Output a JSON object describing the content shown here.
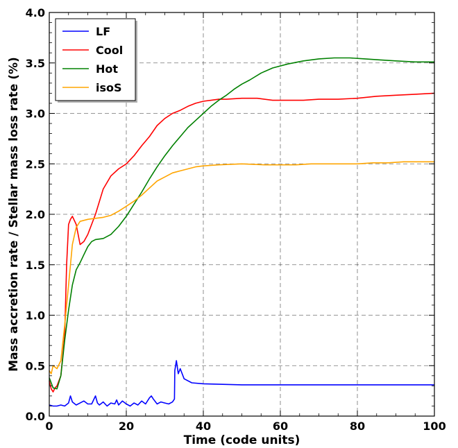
{
  "chart_data": {
    "type": "line",
    "title": "",
    "xlabel": "Time (code units)",
    "ylabel": "Mass accretion rate / Stellar mass loss rate (%)",
    "xlim": [
      0,
      100
    ],
    "ylim": [
      0.0,
      4.0
    ],
    "xticks": [
      "0",
      "20",
      "40",
      "60",
      "80",
      "100"
    ],
    "yticks": [
      "0.0",
      "0.5",
      "1.0",
      "1.5",
      "2.0",
      "2.5",
      "3.0",
      "3.5",
      "4.0"
    ],
    "grid": true,
    "legend_position": "top-left",
    "series": [
      {
        "name": "LF",
        "color": "#0000ff",
        "points": [
          [
            0,
            0.11
          ],
          [
            1,
            0.1
          ],
          [
            2,
            0.1
          ],
          [
            3,
            0.11
          ],
          [
            4,
            0.1
          ],
          [
            5,
            0.13
          ],
          [
            5.5,
            0.2
          ],
          [
            6,
            0.14
          ],
          [
            7,
            0.11
          ],
          [
            8,
            0.13
          ],
          [
            9,
            0.15
          ],
          [
            10,
            0.12
          ],
          [
            11,
            0.12
          ],
          [
            12,
            0.2
          ],
          [
            12.5,
            0.13
          ],
          [
            13,
            0.11
          ],
          [
            14,
            0.14
          ],
          [
            15,
            0.1
          ],
          [
            16,
            0.13
          ],
          [
            17,
            0.12
          ],
          [
            17.5,
            0.16
          ],
          [
            18,
            0.11
          ],
          [
            19,
            0.15
          ],
          [
            20,
            0.12
          ],
          [
            21,
            0.1
          ],
          [
            22,
            0.13
          ],
          [
            23,
            0.11
          ],
          [
            24,
            0.15
          ],
          [
            25,
            0.12
          ],
          [
            26,
            0.18
          ],
          [
            26.5,
            0.2
          ],
          [
            27,
            0.17
          ],
          [
            28,
            0.12
          ],
          [
            29,
            0.14
          ],
          [
            30,
            0.13
          ],
          [
            31,
            0.12
          ],
          [
            32,
            0.14
          ],
          [
            32.5,
            0.17
          ],
          [
            32.6,
            0.45
          ],
          [
            33,
            0.55
          ],
          [
            33.5,
            0.42
          ],
          [
            34,
            0.47
          ],
          [
            35,
            0.37
          ],
          [
            37,
            0.33
          ],
          [
            40,
            0.32
          ],
          [
            50,
            0.31
          ],
          [
            60,
            0.31
          ],
          [
            70,
            0.31
          ],
          [
            80,
            0.31
          ],
          [
            90,
            0.31
          ],
          [
            100,
            0.31
          ]
        ]
      },
      {
        "name": "Cool",
        "color": "#ff0000",
        "points": [
          [
            0,
            0.35
          ],
          [
            0.5,
            0.27
          ],
          [
            1,
            0.24
          ],
          [
            1.5,
            0.28
          ],
          [
            2,
            0.3
          ],
          [
            3,
            0.4
          ],
          [
            4,
            0.8
          ],
          [
            4.5,
            1.5
          ],
          [
            5,
            1.9
          ],
          [
            5.5,
            1.95
          ],
          [
            6,
            1.98
          ],
          [
            7,
            1.9
          ],
          [
            8,
            1.7
          ],
          [
            9,
            1.73
          ],
          [
            10,
            1.8
          ],
          [
            12,
            2.0
          ],
          [
            14,
            2.25
          ],
          [
            16,
            2.38
          ],
          [
            18,
            2.45
          ],
          [
            20,
            2.5
          ],
          [
            22,
            2.58
          ],
          [
            24,
            2.68
          ],
          [
            26,
            2.77
          ],
          [
            28,
            2.88
          ],
          [
            30,
            2.95
          ],
          [
            32,
            3.0
          ],
          [
            34,
            3.03
          ],
          [
            36,
            3.07
          ],
          [
            38,
            3.1
          ],
          [
            40,
            3.12
          ],
          [
            42,
            3.13
          ],
          [
            44,
            3.14
          ],
          [
            46,
            3.14
          ],
          [
            50,
            3.15
          ],
          [
            54,
            3.15
          ],
          [
            58,
            3.13
          ],
          [
            62,
            3.13
          ],
          [
            66,
            3.13
          ],
          [
            70,
            3.14
          ],
          [
            75,
            3.14
          ],
          [
            80,
            3.15
          ],
          [
            85,
            3.17
          ],
          [
            90,
            3.18
          ],
          [
            95,
            3.19
          ],
          [
            100,
            3.2
          ]
        ]
      },
      {
        "name": "Hot",
        "color": "#008000",
        "points": [
          [
            0,
            0.38
          ],
          [
            1,
            0.28
          ],
          [
            2,
            0.27
          ],
          [
            3,
            0.4
          ],
          [
            4,
            0.75
          ],
          [
            5,
            1.05
          ],
          [
            6,
            1.3
          ],
          [
            7,
            1.45
          ],
          [
            8,
            1.52
          ],
          [
            9,
            1.6
          ],
          [
            10,
            1.68
          ],
          [
            11,
            1.73
          ],
          [
            12,
            1.75
          ],
          [
            14,
            1.76
          ],
          [
            16,
            1.8
          ],
          [
            18,
            1.88
          ],
          [
            20,
            1.98
          ],
          [
            22,
            2.1
          ],
          [
            24,
            2.22
          ],
          [
            26,
            2.35
          ],
          [
            28,
            2.47
          ],
          [
            30,
            2.58
          ],
          [
            32,
            2.68
          ],
          [
            34,
            2.77
          ],
          [
            36,
            2.86
          ],
          [
            38,
            2.93
          ],
          [
            40,
            3.0
          ],
          [
            42,
            3.07
          ],
          [
            44,
            3.13
          ],
          [
            46,
            3.18
          ],
          [
            48,
            3.24
          ],
          [
            50,
            3.29
          ],
          [
            52,
            3.33
          ],
          [
            55,
            3.4
          ],
          [
            58,
            3.45
          ],
          [
            62,
            3.49
          ],
          [
            66,
            3.52
          ],
          [
            70,
            3.54
          ],
          [
            74,
            3.55
          ],
          [
            78,
            3.55
          ],
          [
            82,
            3.54
          ],
          [
            86,
            3.53
          ],
          [
            90,
            3.52
          ],
          [
            95,
            3.51
          ],
          [
            100,
            3.51
          ]
        ]
      },
      {
        "name": "isoS",
        "color": "#ffa500",
        "points": [
          [
            0,
            0.45
          ],
          [
            0.5,
            0.42
          ],
          [
            1,
            0.5
          ],
          [
            2,
            0.47
          ],
          [
            3,
            0.55
          ],
          [
            4,
            0.9
          ],
          [
            5,
            1.3
          ],
          [
            6,
            1.7
          ],
          [
            7,
            1.87
          ],
          [
            8,
            1.93
          ],
          [
            10,
            1.95
          ],
          [
            12,
            1.96
          ],
          [
            14,
            1.97
          ],
          [
            16,
            1.99
          ],
          [
            18,
            2.03
          ],
          [
            20,
            2.08
          ],
          [
            22,
            2.13
          ],
          [
            24,
            2.19
          ],
          [
            26,
            2.26
          ],
          [
            28,
            2.33
          ],
          [
            30,
            2.37
          ],
          [
            32,
            2.41
          ],
          [
            34,
            2.43
          ],
          [
            36,
            2.45
          ],
          [
            38,
            2.47
          ],
          [
            40,
            2.48
          ],
          [
            44,
            2.49
          ],
          [
            50,
            2.5
          ],
          [
            56,
            2.49
          ],
          [
            60,
            2.49
          ],
          [
            64,
            2.49
          ],
          [
            68,
            2.5
          ],
          [
            72,
            2.5
          ],
          [
            76,
            2.5
          ],
          [
            80,
            2.5
          ],
          [
            84,
            2.51
          ],
          [
            88,
            2.51
          ],
          [
            92,
            2.52
          ],
          [
            96,
            2.52
          ],
          [
            100,
            2.52
          ]
        ]
      }
    ]
  }
}
